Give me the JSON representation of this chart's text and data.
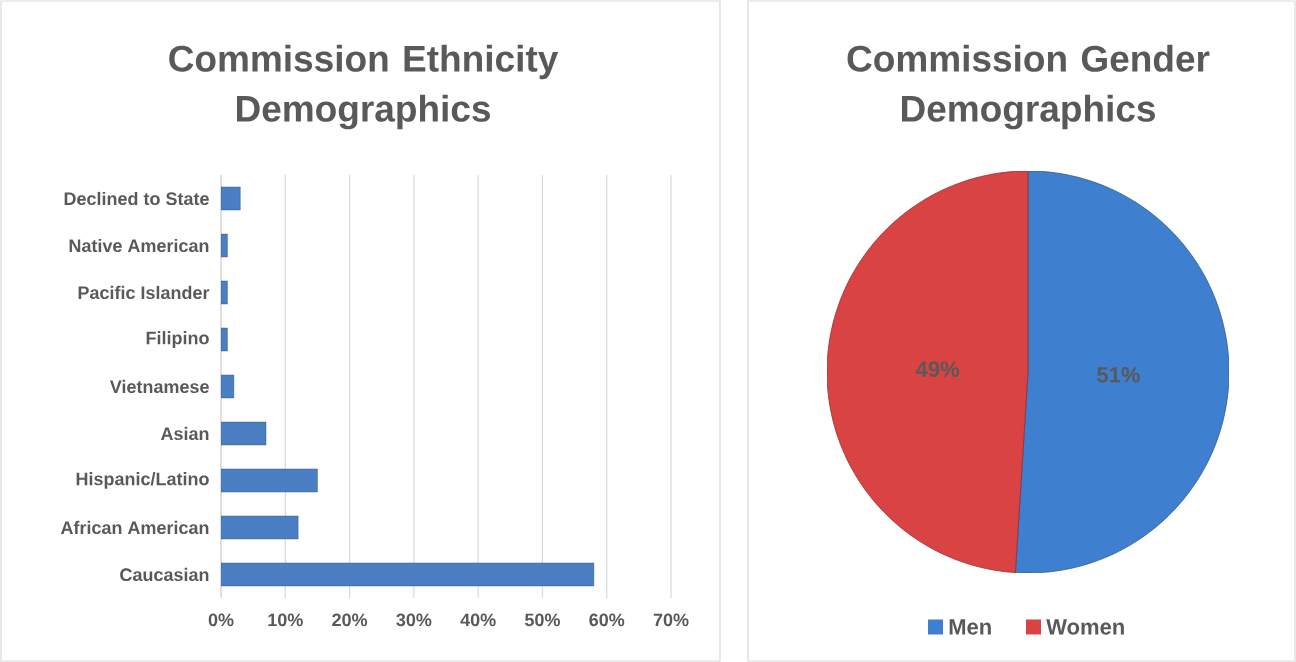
{
  "chart_data": [
    {
      "type": "bar",
      "orientation": "horizontal",
      "title": "Commission Ethnicity Demographics",
      "categories": [
        "Declined to State",
        "Native American",
        "Pacific Islander",
        "Filipino",
        "Vietnamese",
        "Asian",
        "Hispanic/Latino",
        "African American",
        "Caucasian"
      ],
      "values": [
        3,
        1,
        1,
        1,
        2,
        7,
        15,
        12,
        58
      ],
      "color": "#4a7fc4",
      "xlim": [
        0,
        70
      ],
      "xticks": [
        {
          "value": 0,
          "label": "0%"
        },
        {
          "value": 10,
          "label": "10%"
        },
        {
          "value": 20,
          "label": "20%"
        },
        {
          "value": 30,
          "label": "30%"
        },
        {
          "value": 40,
          "label": "40%"
        },
        {
          "value": 50,
          "label": "50%"
        },
        {
          "value": 60,
          "label": "60%"
        },
        {
          "value": 70,
          "label": "70%"
        }
      ],
      "grid": "x"
    },
    {
      "type": "pie",
      "title": "Commission Gender Demographics",
      "categories": [
        "Men",
        "Women"
      ],
      "values": [
        51,
        49
      ],
      "colors": [
        "#3f7fd0",
        "#d94343"
      ],
      "value_labels": [
        "51%",
        "49%"
      ],
      "legend": "bottom"
    }
  ]
}
